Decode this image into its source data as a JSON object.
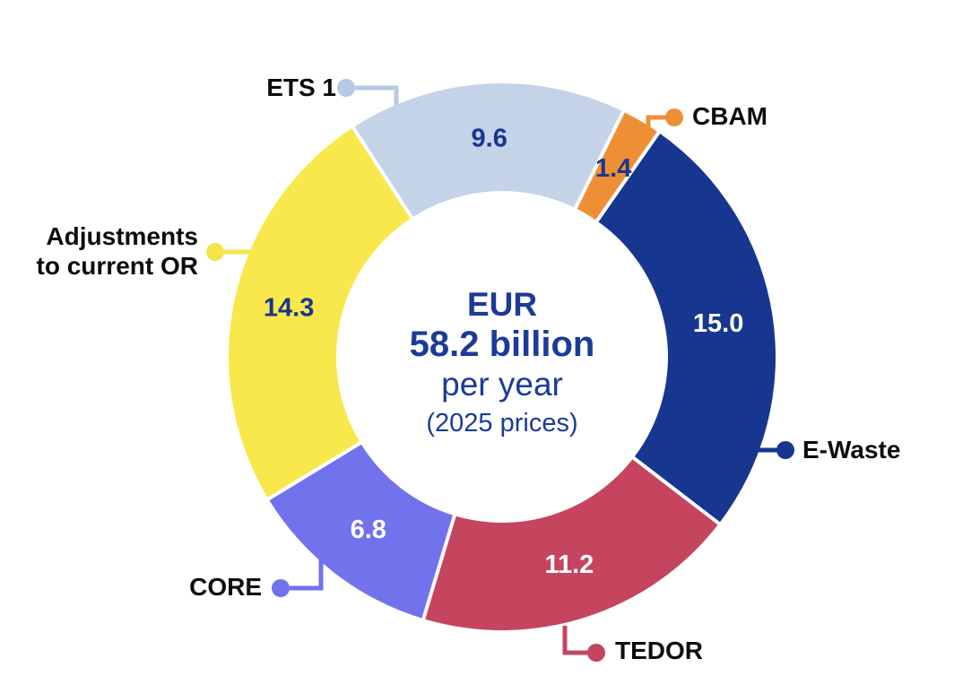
{
  "chart_data": {
    "type": "pie",
    "subtype": "donut",
    "background_color": "#ffffff",
    "center_text_color": "#1b3b97",
    "center": {
      "currency": "EUR",
      "amount": "58.2 billion",
      "period": "per year",
      "basis": "(2025 prices)"
    },
    "start_angle_deg": 327,
    "clockwise": true,
    "legend_position": "callout-labels",
    "segments": [
      {
        "id": "ets1",
        "label": "ETS 1",
        "value": 9.6,
        "value_label": "9.6",
        "color": "#c4d3e8",
        "callout_color": "#b7c9e4",
        "value_color": "#17368f"
      },
      {
        "id": "cbam",
        "label": "CBAM",
        "value": 1.4,
        "value_label": "1.4",
        "color": "#ef8f35",
        "callout_color": "#ef8f35",
        "value_color": "#17368f"
      },
      {
        "id": "ewaste",
        "label": "E-Waste",
        "value": 15.0,
        "value_label": "15.0",
        "color": "#17368f",
        "callout_color": "#17368f",
        "value_color": "#ffffff"
      },
      {
        "id": "tedor",
        "label": "TEDOR",
        "value": 11.2,
        "value_label": "11.2",
        "color": "#c5455f",
        "callout_color": "#c5455f",
        "value_color": "#ffffff"
      },
      {
        "id": "core",
        "label": "CORE",
        "value": 6.8,
        "value_label": "6.8",
        "color": "#7172ec",
        "callout_color": "#7172ec",
        "value_color": "#ffffff"
      },
      {
        "id": "adjustments",
        "label": "Adjustments to current OR",
        "value": 14.3,
        "value_label": "14.3",
        "color": "#f9e84c",
        "callout_color": "#f7e448",
        "value_color": "#17368f"
      }
    ]
  }
}
